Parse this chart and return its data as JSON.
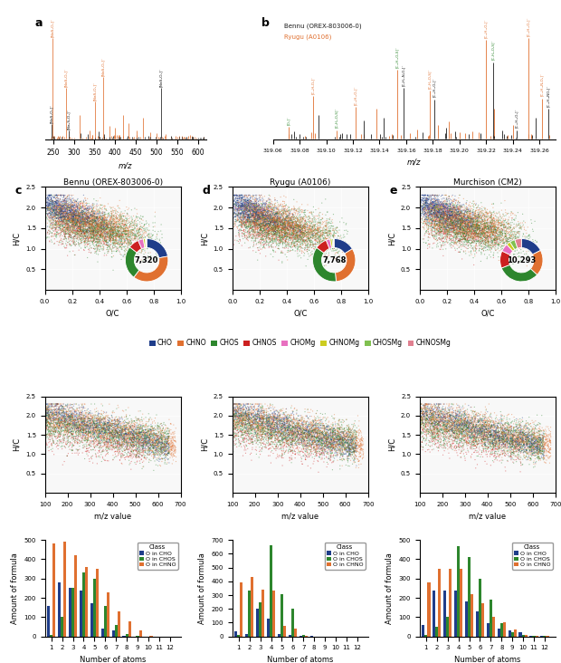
{
  "panel_a": {
    "xlabel": "m/z",
    "xlim": [
      230,
      620
    ],
    "xticks": [
      250,
      300,
      350,
      400,
      450,
      500,
      550,
      600
    ]
  },
  "panel_b": {
    "legend": [
      "Bennu (OREX-803006-0)",
      "Ryugu (A0106)"
    ],
    "xlabel": "m/z",
    "xlim": [
      319.06,
      319.27
    ],
    "xticks": [
      319.06,
      319.08,
      319.1,
      319.12,
      319.14,
      319.16,
      319.18,
      319.2,
      319.22,
      319.24,
      319.26
    ]
  },
  "pie_bennu": {
    "values": [
      0.22,
      0.38,
      0.25,
      0.08,
      0.04,
      0.015,
      0.005,
      0.005
    ],
    "colors": [
      "#1f3d8a",
      "#e07030",
      "#2d862d",
      "#cc2020",
      "#e870c0",
      "#cccc20",
      "#80c050",
      "#e08090"
    ],
    "label": "7,320"
  },
  "pie_ryugu": {
    "values": [
      0.16,
      0.32,
      0.36,
      0.09,
      0.03,
      0.015,
      0.01,
      0.005
    ],
    "colors": [
      "#1f3d8a",
      "#e07030",
      "#2d862d",
      "#cc2020",
      "#e870c0",
      "#cccc20",
      "#80c050",
      "#e08090"
    ],
    "label": "7,768"
  },
  "pie_murchison": {
    "values": [
      0.175,
      0.195,
      0.32,
      0.13,
      0.06,
      0.03,
      0.04,
      0.05
    ],
    "colors": [
      "#1f3d8a",
      "#e07030",
      "#2d862d",
      "#cc2020",
      "#e870c0",
      "#cccc20",
      "#80c050",
      "#e08090"
    ],
    "label": "10,293"
  },
  "legend_classes": {
    "labels": [
      "CHO",
      "CHNO",
      "CHOS",
      "CHNOS",
      "CHOMg",
      "CHNOMg",
      "CHOSMg",
      "CHNOSMg"
    ],
    "colors": [
      "#1f3d8a",
      "#e07030",
      "#2d862d",
      "#cc2020",
      "#e870c0",
      "#cccc20",
      "#80c050",
      "#e08090"
    ]
  },
  "bar_bennu": {
    "cho": [
      160,
      280,
      250,
      240,
      170,
      40,
      30,
      5,
      0,
      0,
      0,
      0
    ],
    "chos": [
      10,
      100,
      250,
      330,
      300,
      160,
      60,
      15,
      5,
      0,
      0,
      0
    ],
    "chno": [
      480,
      490,
      420,
      360,
      350,
      230,
      130,
      80,
      30,
      5,
      0,
      0
    ],
    "ylim": [
      0,
      500
    ],
    "yticks": [
      0,
      100,
      200,
      300,
      400,
      500
    ]
  },
  "bar_ryugu": {
    "cho": [
      40,
      20,
      200,
      130,
      15,
      10,
      5,
      2,
      0,
      0,
      0,
      0
    ],
    "chos": [
      10,
      330,
      250,
      660,
      310,
      200,
      10,
      0,
      0,
      0,
      0,
      0
    ],
    "chno": [
      390,
      430,
      340,
      330,
      80,
      60,
      5,
      0,
      0,
      0,
      0,
      0
    ],
    "ylim": [
      0,
      700
    ],
    "yticks": [
      0,
      100,
      200,
      300,
      400,
      500,
      600,
      700
    ]
  },
  "bar_murchison": {
    "cho": [
      60,
      240,
      240,
      240,
      180,
      130,
      70,
      40,
      30,
      20,
      5,
      2
    ],
    "chos": [
      10,
      50,
      100,
      470,
      410,
      300,
      190,
      70,
      20,
      10,
      5,
      2
    ],
    "chno": [
      280,
      350,
      350,
      350,
      220,
      170,
      100,
      75,
      35,
      10,
      5,
      2
    ],
    "ylim": [
      0,
      500
    ],
    "yticks": [
      0,
      100,
      200,
      300,
      400,
      500
    ]
  },
  "colors": {
    "black": "#1a1a1a",
    "orange": "#e07030",
    "bar_cho": "#1f3d8a",
    "bar_chos": "#2d862d",
    "bar_chno": "#e07030"
  },
  "panel_c_title": "Bennu (OREX-803006-0)",
  "panel_d_title": "Ryugu (A0106)",
  "panel_e_title": "Murchison (CM2)"
}
